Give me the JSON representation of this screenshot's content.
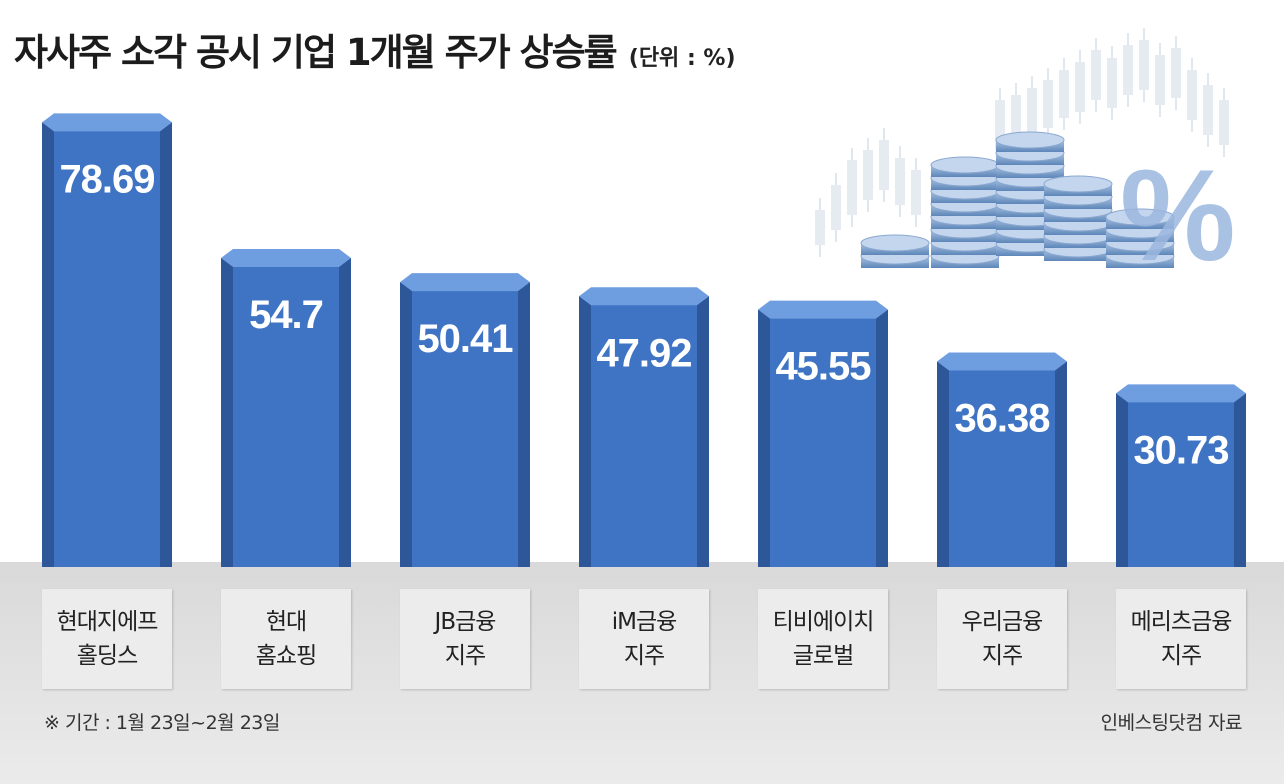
{
  "title": "자사주 소각 공시 기업 1개월 주가 상승률",
  "unit": "(단위 : %)",
  "footnote": "※ 기간 : 1월 23일~2월 23일",
  "source": "인베스팅닷컴 자료",
  "colors": {
    "bar_front": "#3f74c4",
    "bar_side": "#2e5799",
    "bar_top": "#6f9ee0",
    "floor": "#e4e4e4"
  },
  "chart_data": {
    "type": "bar",
    "title": "자사주 소각 공시 기업 1개월 주가 상승률",
    "ylabel": "(단위 : %)",
    "ylim": [
      0,
      80
    ],
    "categories": [
      "현대지에프\n홀딩스",
      "현대\n홈쇼핑",
      "JB금융\n지주",
      "iM금융\n지주",
      "티비에이치\n글로벌",
      "우리금융\n지주",
      "메리츠금융\n지주"
    ],
    "values": [
      78.69,
      54.7,
      50.41,
      47.92,
      45.55,
      36.38,
      30.73
    ],
    "value_labels": [
      "78.69",
      "54.7",
      "50.41",
      "47.92",
      "45.55",
      "36.38",
      "30.73"
    ]
  }
}
